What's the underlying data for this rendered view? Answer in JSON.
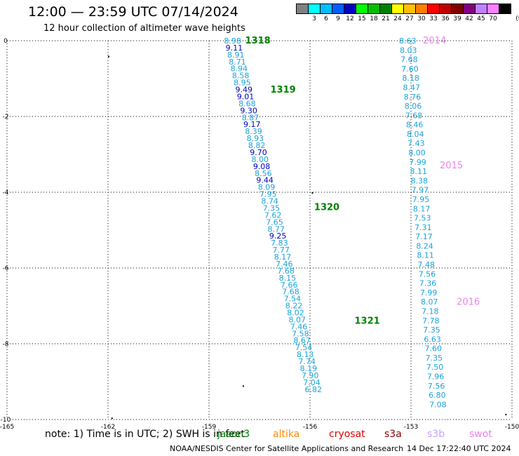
{
  "header": {
    "title": "12:00 — 23:59 UTC 07/14/2024",
    "subtitle": "12 hour collection of altimeter wave heights"
  },
  "colorbar": {
    "unit": "(ft)",
    "bins": [
      {
        "label": "",
        "color": "#808080"
      },
      {
        "label": "3",
        "color": "#00ffff"
      },
      {
        "label": "6",
        "color": "#00bfff"
      },
      {
        "label": "9",
        "color": "#0060ff"
      },
      {
        "label": "12",
        "color": "#0000c0"
      },
      {
        "label": "15",
        "color": "#00ff00"
      },
      {
        "label": "18",
        "color": "#00c000"
      },
      {
        "label": "21",
        "color": "#008000"
      },
      {
        "label": "24",
        "color": "#ffff00"
      },
      {
        "label": "27",
        "color": "#ffc000"
      },
      {
        "label": "30",
        "color": "#ff8000"
      },
      {
        "label": "33",
        "color": "#ff0000"
      },
      {
        "label": "36",
        "color": "#c00000"
      },
      {
        "label": "39",
        "color": "#800000"
      },
      {
        "label": "42",
        "color": "#800080"
      },
      {
        "label": "45",
        "color": "#c080ff"
      },
      {
        "label": "70",
        "color": "#ff80ff"
      },
      {
        "label": "",
        "color": "#000000"
      }
    ]
  },
  "map": {
    "lon_range": [
      -165,
      -150
    ],
    "lat_range": [
      -10,
      0
    ],
    "x_ticks": [
      -165,
      -162,
      -159,
      -156,
      -153,
      -150
    ],
    "y_ticks": [
      0,
      -2,
      -4,
      -6,
      -8,
      -10
    ],
    "x_tick_labels": [
      "-165",
      "-162",
      "-159",
      "-156",
      "-153",
      "-150"
    ],
    "y_tick_labels": [
      "0",
      "-2",
      "-4",
      "-6",
      "-8",
      "-10"
    ],
    "grid": true,
    "colors": {
      "light": "#1ba3d9",
      "dark": "#0000c0",
      "pass_jason": "#008000",
      "pass_swot": "#ee82ee"
    },
    "tracks": [
      {
        "name": "track-jason",
        "lon_start": -158.3,
        "lat_start": 0.0,
        "lon_end": -155.9,
        "lat_end": -9.2,
        "pass_labels": [
          {
            "text": "1318",
            "lon": -157.55,
            "lat": 0.0
          },
          {
            "text": "1319",
            "lon": -156.8,
            "lat": -1.3
          },
          {
            "text": "1320",
            "lon": -155.5,
            "lat": -4.4
          },
          {
            "text": "1321",
            "lon": -154.3,
            "lat": -7.4
          }
        ],
        "values": [
          {
            "v": "8.98",
            "dark": false
          },
          {
            "v": "9.11",
            "dark": true
          },
          {
            "v": "8.91",
            "dark": false
          },
          {
            "v": "8.71",
            "dark": false
          },
          {
            "v": "8.94",
            "dark": false
          },
          {
            "v": "8.58",
            "dark": false
          },
          {
            "v": "8.95",
            "dark": false
          },
          {
            "v": "9.49",
            "dark": true
          },
          {
            "v": "9.01",
            "dark": true
          },
          {
            "v": "8.68",
            "dark": false
          },
          {
            "v": "9.30",
            "dark": true
          },
          {
            "v": "8.87",
            "dark": false
          },
          {
            "v": "9.17",
            "dark": true
          },
          {
            "v": "8.39",
            "dark": false
          },
          {
            "v": "8.93",
            "dark": false
          },
          {
            "v": "8.82",
            "dark": false
          },
          {
            "v": "9.70",
            "dark": true
          },
          {
            "v": "8.00",
            "dark": false
          },
          {
            "v": "9.08",
            "dark": true
          },
          {
            "v": "8.56",
            "dark": false
          },
          {
            "v": "9.44",
            "dark": true
          },
          {
            "v": "8.09",
            "dark": false
          },
          {
            "v": "7.95",
            "dark": false
          },
          {
            "v": "8.74",
            "dark": false
          },
          {
            "v": "7.35",
            "dark": false
          },
          {
            "v": "7.62",
            "dark": false
          },
          {
            "v": "7.65",
            "dark": false
          },
          {
            "v": "8.77",
            "dark": false
          },
          {
            "v": "9.25",
            "dark": true
          },
          {
            "v": "7.83",
            "dark": false
          },
          {
            "v": "7.77",
            "dark": false
          },
          {
            "v": "8.17",
            "dark": false
          },
          {
            "v": "7.46",
            "dark": false
          },
          {
            "v": "7.68",
            "dark": false
          },
          {
            "v": "8.15",
            "dark": false
          },
          {
            "v": "7.66",
            "dark": false
          },
          {
            "v": "7.68",
            "dark": false
          },
          {
            "v": "7.54",
            "dark": false
          },
          {
            "v": "8.22",
            "dark": false
          },
          {
            "v": "8.02",
            "dark": false
          },
          {
            "v": "8.07",
            "dark": false
          },
          {
            "v": "7.46",
            "dark": false
          },
          {
            "v": "7.58",
            "dark": false
          },
          {
            "v": "8.67",
            "dark": false
          },
          {
            "v": "7.54",
            "dark": false
          },
          {
            "v": "8.13",
            "dark": false
          },
          {
            "v": "7.74",
            "dark": false
          },
          {
            "v": "8.19",
            "dark": false
          },
          {
            "v": "7.90",
            "dark": false
          },
          {
            "v": "7.04",
            "dark": false
          },
          {
            "v": "6.82",
            "dark": false
          }
        ]
      },
      {
        "name": "track-swot",
        "lon_start": -153.1,
        "lat_start": 0.0,
        "lon_end": -152.2,
        "lat_end": -9.6,
        "pass_labels": [
          {
            "text": "2014",
            "lon": -152.3,
            "lat": 0.0
          },
          {
            "text": "2015",
            "lon": -151.8,
            "lat": -3.3
          },
          {
            "text": "2016",
            "lon": -151.3,
            "lat": -6.9
          }
        ],
        "values": [
          {
            "v": "8.63",
            "dark": false
          },
          {
            "v": "8.03",
            "dark": false
          },
          {
            "v": "7.68",
            "dark": false
          },
          {
            "v": "7.60",
            "dark": false
          },
          {
            "v": "8.18",
            "dark": false
          },
          {
            "v": "8.47",
            "dark": false
          },
          {
            "v": "8.76",
            "dark": false
          },
          {
            "v": "8.06",
            "dark": false
          },
          {
            "v": "7.68",
            "dark": false
          },
          {
            "v": "8.46",
            "dark": false
          },
          {
            "v": "8.04",
            "dark": false
          },
          {
            "v": "7.43",
            "dark": false
          },
          {
            "v": "8.00",
            "dark": false
          },
          {
            "v": "7.99",
            "dark": false
          },
          {
            "v": "8.11",
            "dark": false
          },
          {
            "v": "8.38",
            "dark": false
          },
          {
            "v": "7.97",
            "dark": false
          },
          {
            "v": "7.95",
            "dark": false
          },
          {
            "v": "8.17",
            "dark": false
          },
          {
            "v": "7.53",
            "dark": false
          },
          {
            "v": "7.31",
            "dark": false
          },
          {
            "v": "7.17",
            "dark": false
          },
          {
            "v": "8.24",
            "dark": false
          },
          {
            "v": "8.11",
            "dark": false
          },
          {
            "v": "7.48",
            "dark": false
          },
          {
            "v": "7.56",
            "dark": false
          },
          {
            "v": "7.36",
            "dark": false
          },
          {
            "v": "7.99",
            "dark": false
          },
          {
            "v": "8.07",
            "dark": false
          },
          {
            "v": "7.18",
            "dark": false
          },
          {
            "v": "7.78",
            "dark": false
          },
          {
            "v": "7.35",
            "dark": false
          },
          {
            "v": "6.63",
            "dark": false
          },
          {
            "v": "7.60",
            "dark": false
          },
          {
            "v": "7.35",
            "dark": false
          },
          {
            "v": "7.50",
            "dark": false
          },
          {
            "v": "7.96",
            "dark": false
          },
          {
            "v": "7.56",
            "dark": false
          },
          {
            "v": "6.80",
            "dark": false
          },
          {
            "v": "7.08",
            "dark": false
          }
        ]
      }
    ]
  },
  "footer": {
    "note": "note: 1) Time is in UTC; 2) SWH is in feet",
    "satellites": [
      {
        "name": "jason3",
        "color": "#008000"
      },
      {
        "name": "altika",
        "color": "#ff8c00"
      },
      {
        "name": "cryosat",
        "color": "#e00000"
      },
      {
        "name": "s3a",
        "color": "#8b0000"
      },
      {
        "name": "s3b",
        "color": "#c8a2ff"
      },
      {
        "name": "swot",
        "color": "#ee82ee"
      }
    ],
    "credit": "NOAA/NESDIS Center for Satellite Applications and Research",
    "timestamp": "14 Dec 17:22:40 UTC 2024"
  }
}
